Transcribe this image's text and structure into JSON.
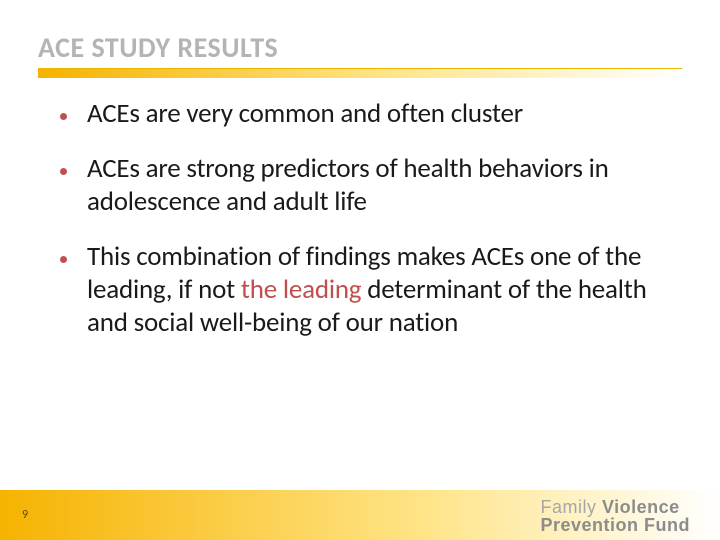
{
  "title": "ACE STUDY RESULTS",
  "title_color": "#b4b4b4",
  "title_fontsize": 28,
  "underline_gradient_from": "#f6b300",
  "underline_gradient_to": "#ffffff",
  "bullets": [
    {
      "pre": "ACEs are very common and often cluster",
      "accent": "",
      "post": ""
    },
    {
      "pre": "ACEs are strong predictors of health behaviors in adolescence and adult life",
      "accent": "",
      "post": ""
    },
    {
      "pre": "This combination of findings makes ACEs one of the leading, if not ",
      "accent": "the leading",
      "post": " determinant of the health and social well-being of our nation"
    }
  ],
  "bullet_color": "#c0504d",
  "body_fontsize": 27,
  "body_color": "#1a1a1a",
  "page_number": "9",
  "footer_gradient_from": "#f6b300",
  "footer_gradient_to": "#ffffff",
  "brand_line1_plain": "Family ",
  "brand_line1_bold": "Violence",
  "brand_line2": "Prevention Fund",
  "brand_color_light": "#a6a6a6",
  "brand_color_bold": "#8c8c8c",
  "background_color": "#ffffff",
  "slide_width": 720,
  "slide_height": 540
}
